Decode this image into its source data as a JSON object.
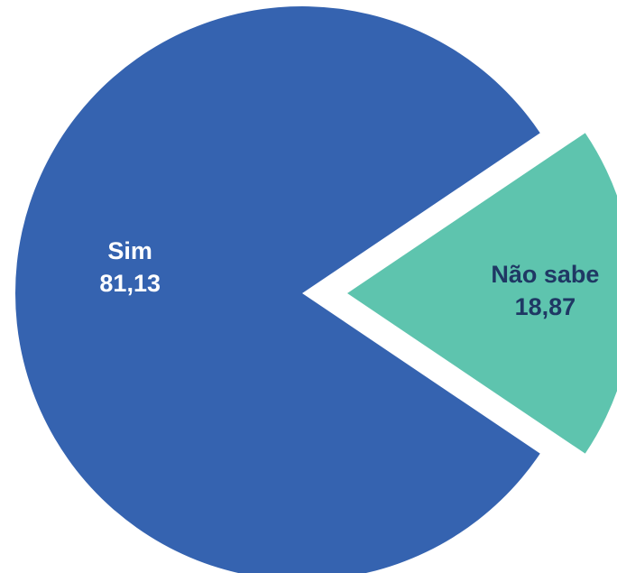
{
  "chart_data": {
    "type": "pie",
    "categories": [
      "Sim",
      "Não sabe"
    ],
    "values": [
      81.13,
      18.87
    ],
    "value_labels": [
      "81,13",
      "18,87"
    ],
    "colors": [
      "#3563b0",
      "#5ec4ae"
    ],
    "label_colors": [
      "#ffffff",
      "#1f3864"
    ]
  }
}
